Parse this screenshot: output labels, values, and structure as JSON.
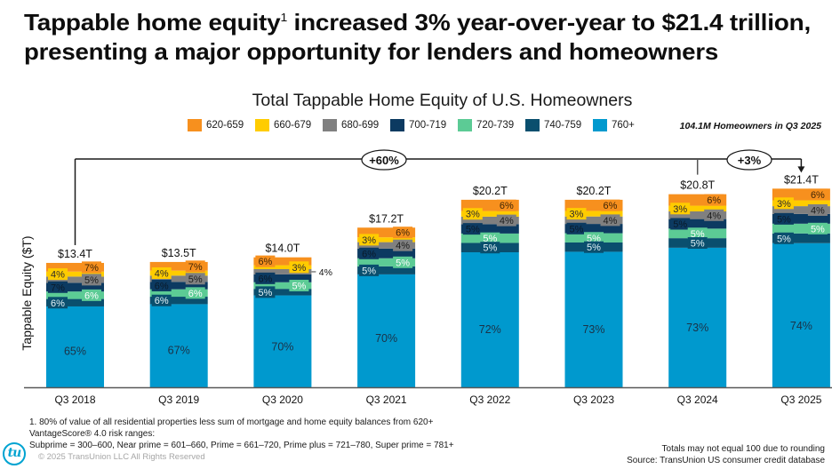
{
  "header": {
    "title_line1_before_sup": "Tappable home equity",
    "title_sup": "1",
    "title_line1_after_sup": " increased 3% year-over-year to $21.4 trillion,",
    "title_line2": "presenting a major opportunity for lenders and homeowners"
  },
  "chart_data": {
    "type": "bar",
    "stacked": true,
    "title": "Total Tappable Home Equity of U.S. Homeowners",
    "xlabel": "",
    "ylabel": "Tappable Equity ($T)",
    "legend_position": "top",
    "grid": false,
    "categories": [
      "Q3 2018",
      "Q3 2019",
      "Q3 2020",
      "Q3 2021",
      "Q3 2022",
      "Q3 2023",
      "Q3 2024",
      "Q3 2025"
    ],
    "totals": [
      13.4,
      13.5,
      14.0,
      17.2,
      20.2,
      20.2,
      20.8,
      21.4
    ],
    "total_labels": [
      "$13.4T",
      "$13.5T",
      "$14.0T",
      "$17.2T",
      "$20.2T",
      "$20.2T",
      "$20.8T",
      "$21.4T"
    ],
    "value_unit": "percent of total",
    "series": [
      {
        "name": "620-659",
        "color": "#F7901E",
        "text_color": "#3d2406",
        "values": [
          7,
          7,
          6,
          6,
          6,
          6,
          6,
          6
        ]
      },
      {
        "name": "660-679",
        "color": "#FFCC00",
        "text_color": "#2b2b2b",
        "values": [
          4,
          4,
          3,
          3,
          3,
          3,
          3,
          3
        ]
      },
      {
        "name": "680-699",
        "color": "#808080",
        "text_color": "#1c1c1c",
        "values": [
          5,
          5,
          4,
          4,
          4,
          4,
          4,
          4
        ]
      },
      {
        "name": "700-719",
        "color": "#0C3A61",
        "text_color": "#0a1a29",
        "values": [
          7,
          6,
          6,
          6,
          5,
          5,
          5,
          5
        ]
      },
      {
        "name": "720-739",
        "color": "#5CCB95",
        "text_color": "#ffffff",
        "values": [
          6,
          6,
          5,
          5,
          5,
          5,
          5,
          5
        ]
      },
      {
        "name": "740-759",
        "color": "#0A4F6E",
        "text_color": "#e6f4f8",
        "values": [
          6,
          6,
          5,
          5,
          5,
          5,
          5,
          5
        ]
      },
      {
        "name": "760+",
        "color": "#0099CE",
        "text_color": "#1b3247",
        "values": [
          65,
          67,
          70,
          70,
          72,
          73,
          73,
          74
        ]
      }
    ],
    "annotations": [
      {
        "label": "+60%",
        "from": "Q3 2018",
        "to": "Q3 2025"
      },
      {
        "label": "+3%",
        "from": "Q3 2024",
        "to": "Q3 2025"
      }
    ],
    "note": "104.1M Homeowners in Q3 2025"
  },
  "footer": {
    "footnote_1": "1. 80% of value of all residential properties less sum of mortgage and home equity balances from 620+",
    "footnote_2": "VantageScore® 4.0 risk ranges:",
    "footnote_3": "Subprime = 300–600, Near prime = 601–660, Prime = 661–720, Prime plus = 721–780, Super prime = 781+",
    "copyright": "© 2025 TransUnion LLC All Rights Reserved",
    "rounding_note": "Totals may not equal 100 due to rounding",
    "source": "Source: TransUnion US consumer credit database",
    "logo_text": "tu"
  }
}
